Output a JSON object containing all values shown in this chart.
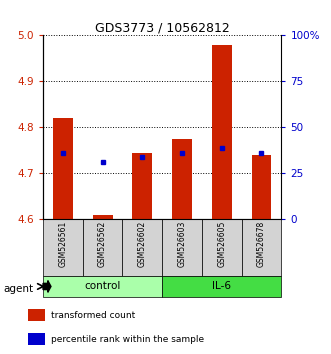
{
  "title": "GDS3773 / 10562812",
  "samples": [
    "GSM526561",
    "GSM526562",
    "GSM526602",
    "GSM526603",
    "GSM526605",
    "GSM526678"
  ],
  "groups": [
    "control",
    "control",
    "control",
    "IL-6",
    "IL-6",
    "IL-6"
  ],
  "red_values": [
    4.82,
    4.61,
    4.745,
    4.775,
    4.98,
    4.74
  ],
  "blue_values": [
    4.745,
    4.725,
    4.735,
    4.745,
    4.755,
    4.745
  ],
  "ylim_left": [
    4.6,
    5.0
  ],
  "ylim_right": [
    0,
    100
  ],
  "yticks_left": [
    4.6,
    4.7,
    4.8,
    4.9,
    5.0
  ],
  "yticks_right": [
    0,
    25,
    50,
    75,
    100
  ],
  "ytick_labels_right": [
    "0",
    "25",
    "50",
    "75",
    "100%"
  ],
  "group_colors": {
    "control": "#aaffaa",
    "IL-6": "#44dd44"
  },
  "bar_color": "#cc2200",
  "dot_color": "#0000cc",
  "left_tick_color": "#cc2200",
  "right_tick_color": "#0000cc",
  "baseline": 4.6,
  "bar_width": 0.5,
  "legend_items": [
    {
      "color": "#cc2200",
      "label": "transformed count"
    },
    {
      "color": "#0000cc",
      "label": "percentile rank within the sample"
    }
  ]
}
